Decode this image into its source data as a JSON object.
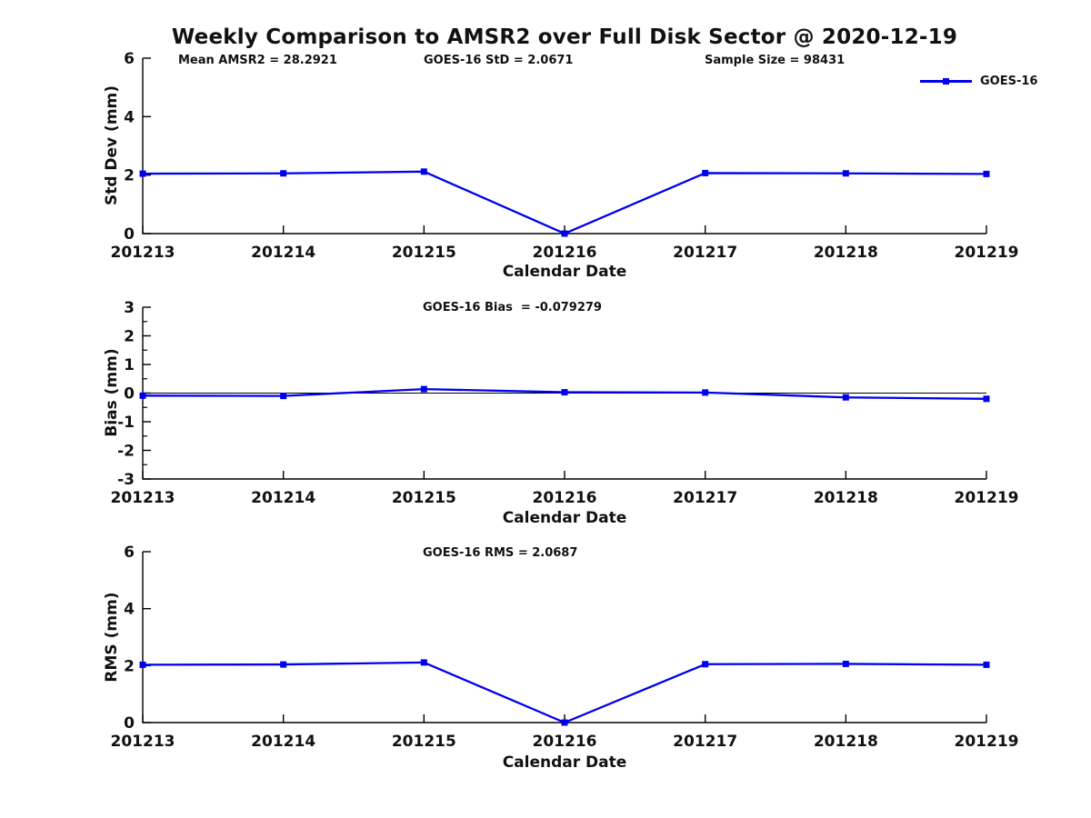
{
  "title": "Weekly Comparison to AMSR2 over Full Disk Sector @ 2020-12-19",
  "legend": {
    "label": "GOES-16"
  },
  "colors": {
    "series": "#0000EE",
    "axis": "#000000",
    "text": "#111111",
    "zero_line": "#000000",
    "background": "#ffffff"
  },
  "chart_data": [
    {
      "type": "line",
      "name": "std-dev-panel",
      "annotations": [
        "Mean AMSR2 = 28.2921",
        "GOES-16 StD = 2.0671",
        "Sample Size = 98431"
      ],
      "categories": [
        "201213",
        "201214",
        "201215",
        "201216",
        "201217",
        "201218",
        "201219"
      ],
      "series": [
        {
          "name": "GOES-16",
          "marker": "square",
          "values": [
            2.05,
            2.06,
            2.12,
            0.0,
            2.07,
            2.06,
            2.04
          ]
        }
      ],
      "xlabel": "Calendar Date",
      "ylabel": "Std Dev (mm)",
      "ylim": [
        0,
        6
      ],
      "yticks": [
        0,
        2,
        4,
        6
      ],
      "minor_tick_step": null,
      "zero_line": false,
      "grid": false,
      "legend_position": "top-right-outside"
    },
    {
      "type": "line",
      "name": "bias-panel",
      "annotations": [
        "GOES-16 Bias  = -0.079279"
      ],
      "categories": [
        "201213",
        "201214",
        "201215",
        "201216",
        "201217",
        "201218",
        "201219"
      ],
      "series": [
        {
          "name": "GOES-16",
          "marker": "square",
          "values": [
            -0.09,
            -0.1,
            0.14,
            0.03,
            0.02,
            -0.15,
            -0.2
          ]
        }
      ],
      "xlabel": "Calendar Date",
      "ylabel": "Bias (mm)",
      "ylim": [
        -3,
        3
      ],
      "yticks": [
        -3,
        -2,
        -1,
        0,
        1,
        2,
        3
      ],
      "minor_tick_step": 0.5,
      "zero_line": true,
      "grid": false,
      "legend_position": "none"
    },
    {
      "type": "line",
      "name": "rms-panel",
      "annotations": [
        "GOES-16 RMS = 2.0687"
      ],
      "categories": [
        "201213",
        "201214",
        "201215",
        "201216",
        "201217",
        "201218",
        "201219"
      ],
      "series": [
        {
          "name": "GOES-16",
          "marker": "square",
          "values": [
            2.03,
            2.04,
            2.11,
            0.0,
            2.05,
            2.06,
            2.03
          ]
        }
      ],
      "xlabel": "Calendar Date",
      "ylabel": "RMS (mm)",
      "ylim": [
        0,
        6
      ],
      "yticks": [
        0,
        2,
        4,
        6
      ],
      "minor_tick_step": null,
      "zero_line": false,
      "grid": false,
      "legend_position": "none"
    }
  ]
}
